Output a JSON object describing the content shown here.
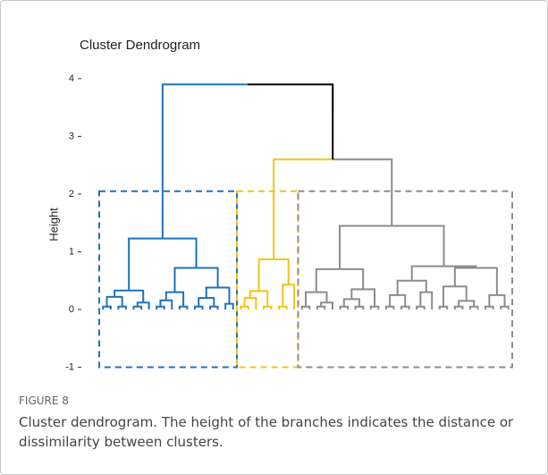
{
  "chart_data": {
    "type": "dendrogram",
    "title": "Cluster Dendrogram",
    "ylabel": "Height",
    "ylim": [
      -1.1,
      4.2
    ],
    "yticks": [
      -1,
      0,
      1,
      2,
      3,
      4
    ],
    "box_ylim": [
      -1,
      2.05
    ],
    "tree": {
      "h": 3.9,
      "c": [
        {
          "h": 1.23,
          "color": "#1f72b8",
          "c": [
            {
              "h": 0.33,
              "c": [
                {
                  "h": 0.22,
                  "c": [
                    {
                      "h": 0.05,
                      "c": [
                        {
                          "h": 0
                        },
                        {
                          "h": 0
                        }
                      ]
                    },
                    {
                      "h": 0.05,
                      "c": [
                        {
                          "h": 0
                        },
                        {
                          "h": 0
                        }
                      ]
                    }
                  ]
                },
                {
                  "h": 0.12,
                  "c": [
                    {
                      "h": 0.05,
                      "c": [
                        {
                          "h": 0
                        },
                        {
                          "h": 0
                        }
                      ]
                    },
                    {
                      "h": 0
                    }
                  ]
                }
              ]
            },
            {
              "h": 0.72,
              "c": [
                {
                  "h": 0.3,
                  "c": [
                    {
                      "h": 0.16,
                      "c": [
                        {
                          "h": 0.05,
                          "c": [
                            {
                              "h": 0
                            },
                            {
                              "h": 0
                            }
                          ]
                        },
                        {
                          "h": 0
                        }
                      ]
                    },
                    {
                      "h": 0.05,
                      "c": [
                        {
                          "h": 0
                        },
                        {
                          "h": 0
                        }
                      ]
                    }
                  ]
                },
                {
                  "h": 0.38,
                  "c": [
                    {
                      "h": 0.2,
                      "c": [
                        {
                          "h": 0.05,
                          "c": [
                            {
                              "h": 0
                            },
                            {
                              "h": 0
                            }
                          ]
                        },
                        {
                          "h": 0.05,
                          "c": [
                            {
                              "h": 0
                            },
                            {
                              "h": 0
                            }
                          ]
                        }
                      ]
                    },
                    {
                      "h": 0.1,
                      "c": [
                        {
                          "h": 0
                        },
                        {
                          "h": 0
                        }
                      ]
                    }
                  ]
                }
              ]
            }
          ]
        },
        {
          "h": 2.6,
          "c": [
            {
              "h": 0.87,
              "color": "#f0c419",
              "c": [
                {
                  "h": 0.32,
                  "c": [
                    {
                      "h": 0.2,
                      "c": [
                        {
                          "h": 0.05,
                          "c": [
                            {
                              "h": 0
                            },
                            {
                              "h": 0
                            }
                          ]
                        },
                        {
                          "h": 0
                        }
                      ]
                    },
                    {
                      "h": 0.05,
                      "c": [
                        {
                          "h": 0
                        },
                        {
                          "h": 0
                        }
                      ]
                    }
                  ]
                },
                {
                  "h": 0.43,
                  "c": [
                    {
                      "h": 0.05,
                      "c": [
                        {
                          "h": 0
                        },
                        {
                          "h": 0
                        }
                      ]
                    },
                    {
                      "h": 0
                    }
                  ]
                }
              ]
            },
            {
              "h": 1.45,
              "color": "#8c8c8c",
              "c": [
                {
                  "h": 0.7,
                  "c": [
                    {
                      "h": 0.3,
                      "c": [
                        {
                          "h": 0.05,
                          "c": [
                            {
                              "h": 0
                            },
                            {
                              "h": 0
                            }
                          ]
                        },
                        {
                          "h": 0.12,
                          "c": [
                            {
                              "h": 0.05,
                              "c": [
                                {
                                  "h": 0
                                },
                                {
                                  "h": 0
                                }
                              ]
                            },
                            {
                              "h": 0
                            }
                          ]
                        }
                      ]
                    },
                    {
                      "h": 0.35,
                      "c": [
                        {
                          "h": 0.18,
                          "c": [
                            {
                              "h": 0.05,
                              "c": [
                                {
                                  "h": 0
                                },
                                {
                                  "h": 0
                                }
                              ]
                            },
                            {
                              "h": 0.05,
                              "c": [
                                {
                                  "h": 0
                                },
                                {
                                  "h": 0
                                }
                              ]
                            }
                          ]
                        },
                        {
                          "h": 0.05,
                          "c": [
                            {
                              "h": 0
                            },
                            {
                              "h": 0
                            }
                          ]
                        }
                      ]
                    }
                  ]
                },
                {
                  "h": 0.75,
                  "c": [
                    {
                      "h": 0.5,
                      "c": [
                        {
                          "h": 0.25,
                          "c": [
                            {
                              "h": 0.05,
                              "c": [
                                {
                                  "h": 0
                                },
                                {
                                  "h": 0
                                }
                              ]
                            },
                            {
                              "h": 0.05,
                              "c": [
                                {
                                  "h": 0
                                },
                                {
                                  "h": 0
                                }
                              ]
                            }
                          ]
                        },
                        {
                          "h": 0.3,
                          "c": [
                            {
                              "h": 0.05,
                              "c": [
                                {
                                  "h": 0
                                },
                                {
                                  "h": 0
                                }
                              ]
                            },
                            {
                              "h": 0
                            }
                          ]
                        }
                      ]
                    },
                    {
                      "h": 0.72,
                      "c": [
                        {
                          "h": 0.4,
                          "c": [
                            {
                              "h": 0.05,
                              "c": [
                                {
                                  "h": 0
                                },
                                {
                                  "h": 0
                                }
                              ]
                            },
                            {
                              "h": 0.15,
                              "c": [
                                {
                                  "h": 0.05,
                                  "c": [
                                    {
                                      "h": 0
                                    },
                                    {
                                      "h": 0
                                    }
                                  ]
                                },
                                {
                                  "h": 0.05,
                                  "c": [
                                    {
                                      "h": 0
                                    },
                                    {
                                      "h": 0
                                    }
                                  ]
                                }
                              ]
                            }
                          ]
                        },
                        {
                          "h": 0.25,
                          "c": [
                            {
                              "h": 0.05,
                              "c": [
                                {
                                  "h": 0
                                },
                                {
                                  "h": 0
                                }
                              ]
                            },
                            {
                              "h": 0.05,
                              "c": [
                                {
                                  "h": 0
                                },
                                {
                                  "h": 0
                                }
                              ]
                            }
                          ]
                        }
                      ]
                    }
                  ]
                }
              ]
            }
          ]
        }
      ]
    }
  },
  "figure": {
    "label": "FIGURE 8",
    "caption": "Cluster dendrogram. The height of the branches indicates the distance or dissimilarity between clusters."
  }
}
